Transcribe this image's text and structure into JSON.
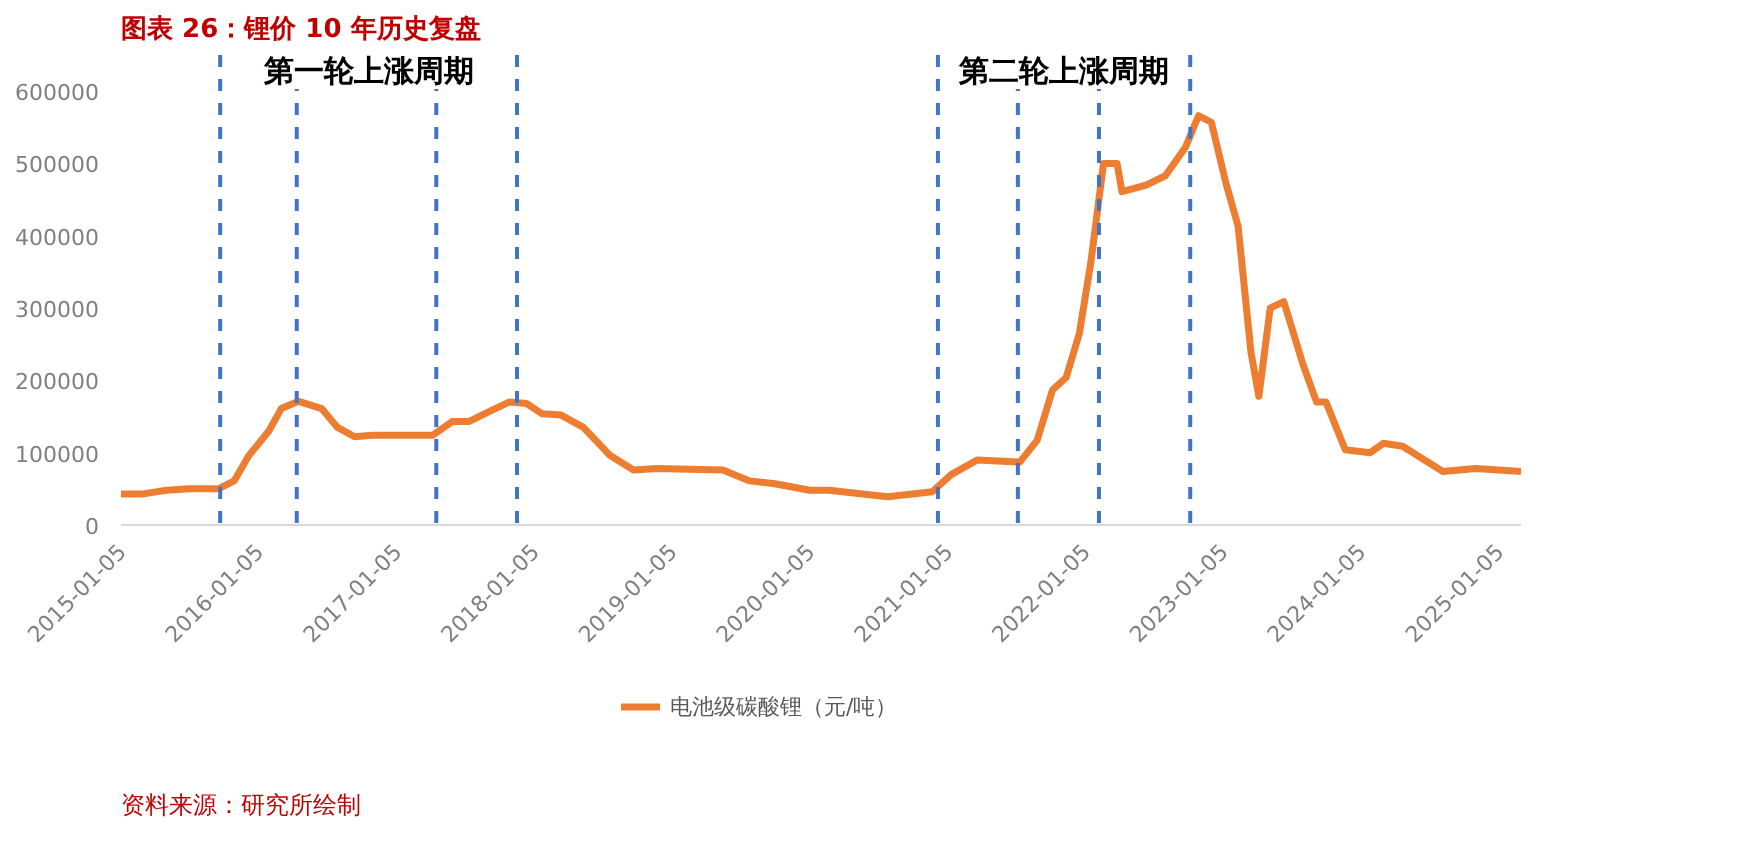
{
  "chart_data": {
    "type": "line",
    "title": "图表 26：锂价 10 年历史复盘",
    "x": [
      "2015-01-05",
      "2015-03-05",
      "2015-05-05",
      "2015-07-05",
      "2015-09-20",
      "2015-11-01",
      "2015-12-10",
      "2016-02-01",
      "2016-03-05",
      "2016-04-20",
      "2016-06-20",
      "2016-08-01",
      "2016-09-15",
      "2016-11-01",
      "2017-04-10",
      "2017-06-01",
      "2017-07-15",
      "2017-09-15",
      "2017-10-30",
      "2017-12-15",
      "2018-01-25",
      "2018-03-17",
      "2018-05-15",
      "2018-07-25",
      "2018-09-25",
      "2018-11-25",
      "2019-05-20",
      "2019-07-30",
      "2019-10-05",
      "2020-01-05",
      "2020-02-25",
      "2020-07-30",
      "2020-11-25",
      "2021-01-15",
      "2021-03-25",
      "2021-07-15",
      "2021-08-30",
      "2021-10-10",
      "2021-11-15",
      "2021-12-20",
      "2022-01-20",
      "2022-02-22",
      "2022-03-30",
      "2022-04-12",
      "2022-06-15",
      "2022-08-05",
      "2022-09-27",
      "2022-11-01",
      "2022-12-05",
      "2023-01-12",
      "2023-02-14",
      "2023-03-20",
      "2023-04-10",
      "2023-05-10",
      "2023-06-15",
      "2023-08-05",
      "2023-09-10",
      "2023-10-05",
      "2023-11-25",
      "2024-01-30",
      "2024-03-05",
      "2024-04-25",
      "2024-08-10",
      "2024-11-05",
      "2025-03-05"
    ],
    "series": [
      {
        "name": "电池级碳酸锂（元/吨）",
        "color": "#ed7d31",
        "values": [
          43000,
          43000,
          48000,
          50000,
          50000,
          61000,
          96000,
          130000,
          161000,
          171000,
          161000,
          135000,
          122000,
          124000,
          124000,
          143000,
          143000,
          159000,
          170000,
          168000,
          154000,
          152000,
          135000,
          96000,
          76000,
          78000,
          76000,
          61000,
          57000,
          48000,
          48000,
          39000,
          46000,
          70000,
          90000,
          87000,
          117000,
          187000,
          204000,
          265000,
          365000,
          500000,
          500000,
          461000,
          470000,
          483000,
          522000,
          566000,
          557000,
          474000,
          413000,
          239000,
          178000,
          300000,
          309000,
          222000,
          170000,
          170000,
          104000,
          100000,
          113000,
          109000,
          74000,
          78000,
          74000
        ]
      }
    ],
    "xlim": [
      "2015-01-05",
      "2025-03-05"
    ],
    "xticks": [
      "2015-01-05",
      "2016-01-05",
      "2017-01-05",
      "2018-01-05",
      "2019-01-05",
      "2020-01-05",
      "2021-01-05",
      "2022-01-05",
      "2023-01-05",
      "2024-01-05",
      "2025-01-05"
    ],
    "ylim": [
      0,
      650000
    ],
    "yticks": [
      0,
      100000,
      200000,
      300000,
      400000,
      500000,
      600000
    ],
    "ref_lines": [
      {
        "axis": "x",
        "value": "2015-09-25",
        "color": "#4472c4",
        "line_style": "dashed"
      },
      {
        "axis": "x",
        "value": "2016-04-15",
        "color": "#4472c4",
        "line_style": "dashed"
      },
      {
        "axis": "x",
        "value": "2017-04-20",
        "color": "#4472c4",
        "line_style": "dashed"
      },
      {
        "axis": "x",
        "value": "2017-11-20",
        "color": "#4472c4",
        "line_style": "dashed"
      },
      {
        "axis": "x",
        "value": "2020-12-10",
        "color": "#4472c4",
        "line_style": "dashed"
      },
      {
        "axis": "x",
        "value": "2021-07-10",
        "color": "#4472c4",
        "line_style": "dashed"
      },
      {
        "axis": "x",
        "value": "2022-02-10",
        "color": "#4472c4",
        "line_style": "dashed"
      },
      {
        "axis": "x",
        "value": "2022-10-10",
        "color": "#4472c4",
        "line_style": "dashed"
      }
    ],
    "annotations": [
      "第一轮上涨周期",
      "第二轮上涨周期",
      "资料来源：研究所绘制"
    ],
    "grid": false,
    "legend": "bottom",
    "marker": "none",
    "line_style": "solid"
  }
}
